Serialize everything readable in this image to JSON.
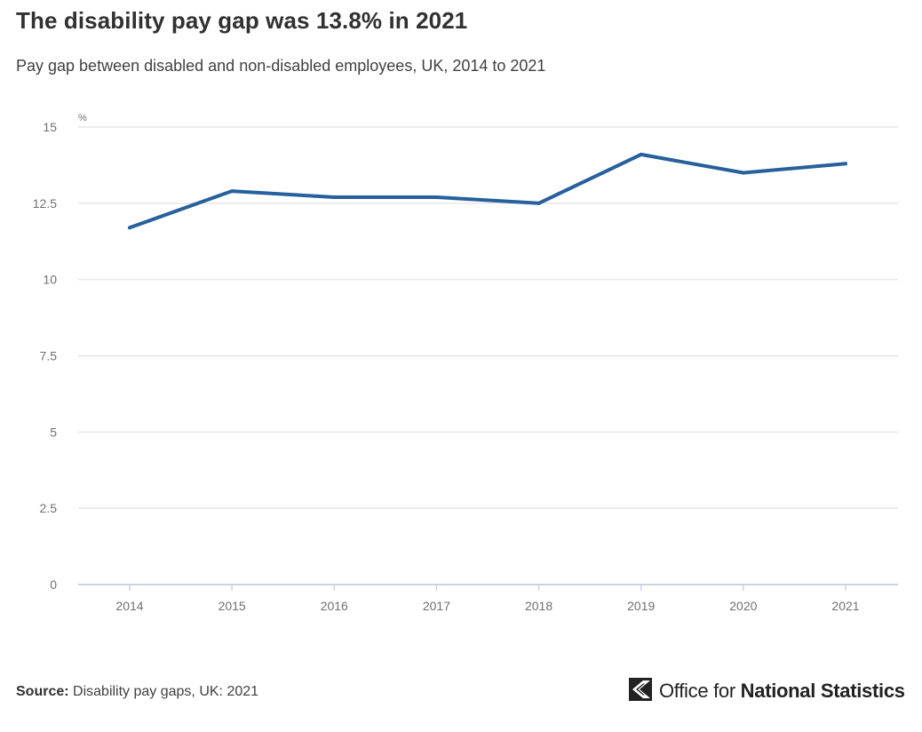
{
  "chart_data": {
    "type": "line",
    "title": "The disability pay gap was 13.8% in 2021",
    "subtitle": "Pay gap between disabled and non-disabled employees, UK, 2014 to 2021",
    "ylabel": "%",
    "xlabel": "",
    "ylim": [
      0,
      15
    ],
    "yticks": [
      "0",
      "2.5",
      "5",
      "7.5",
      "10",
      "12.5",
      "15"
    ],
    "categories": [
      "2014",
      "2015",
      "2016",
      "2017",
      "2018",
      "2019",
      "2020",
      "2021"
    ],
    "series": [
      {
        "values": [
          11.7,
          12.9,
          12.7,
          12.7,
          12.5,
          14.1,
          13.5,
          13.8
        ],
        "color": "#27609c"
      }
    ],
    "grid": true,
    "legend": "none"
  },
  "footer": {
    "source_label": "Source:",
    "source_text": "Disability pay gaps, UK: 2021",
    "org_name_light": "Office for ",
    "org_name_bold": "National Statistics",
    "logo_icon": "ons-logo-icon"
  }
}
